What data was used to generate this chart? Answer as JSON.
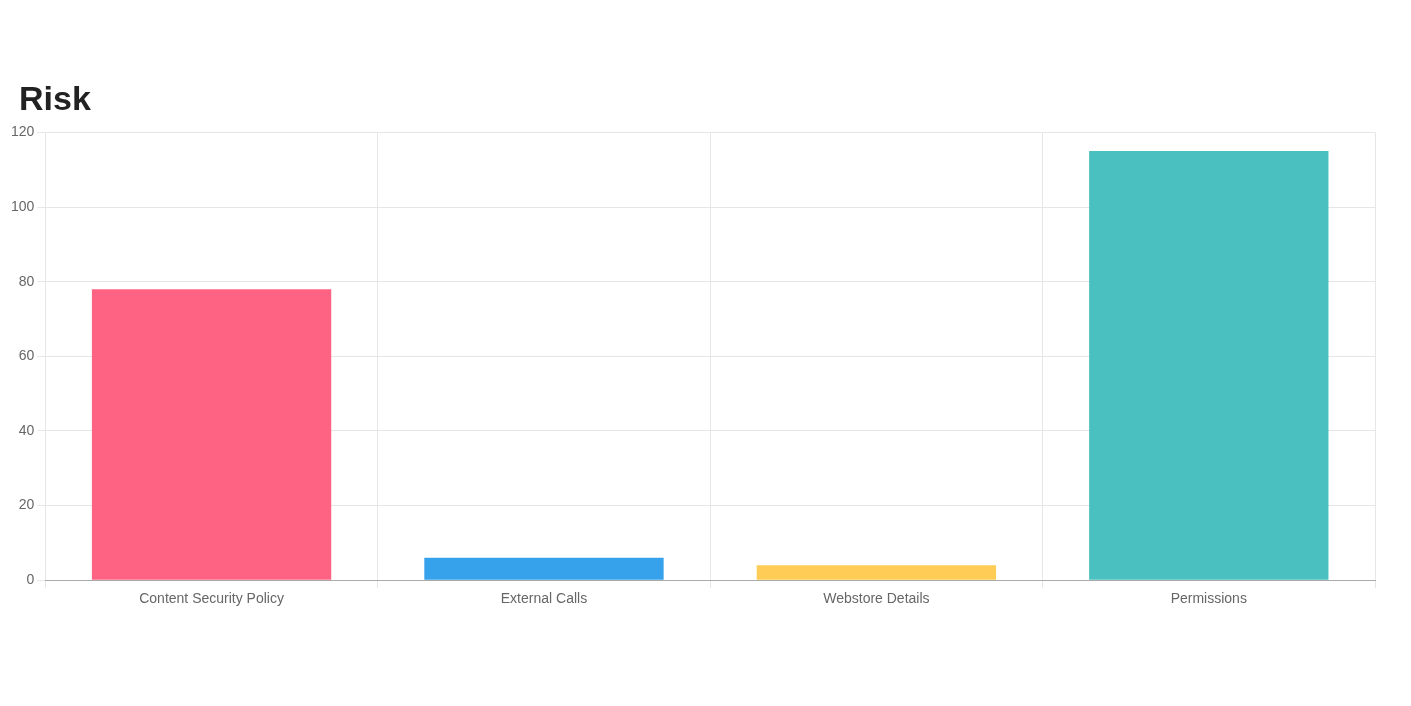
{
  "chart_data": {
    "type": "bar",
    "title": "Risk",
    "categories": [
      "Content Security Policy",
      "External Calls",
      "Webstore Details",
      "Permissions"
    ],
    "values": [
      78,
      6,
      4,
      115
    ],
    "colors": [
      "#ff6384",
      "#36a2eb",
      "#ffcd56",
      "#4bc0c0"
    ],
    "ylim": [
      0,
      120
    ],
    "yticks": [
      0,
      20,
      40,
      60,
      80,
      100,
      120
    ],
    "grid": true,
    "legend": false
  }
}
